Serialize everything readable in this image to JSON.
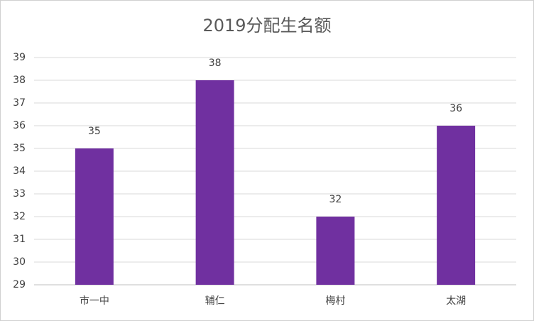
{
  "chart_data": {
    "type": "bar",
    "title": "2019分配生名额",
    "categories": [
      "市一中",
      "辅仁",
      "梅村",
      "太湖"
    ],
    "values": [
      35,
      38,
      32,
      36
    ],
    "color": "#7030a0",
    "ylim": [
      29,
      39
    ],
    "yticks": [
      29,
      30,
      31,
      32,
      33,
      34,
      35,
      36,
      37,
      38,
      39
    ],
    "grid": true,
    "data_labels": true
  }
}
